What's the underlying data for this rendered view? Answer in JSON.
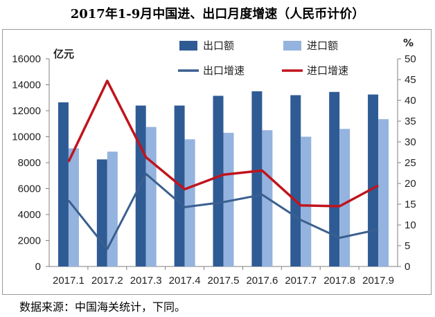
{
  "chart_data": {
    "type": "bar",
    "title": "2017年1-9月中国进、出口月度增速（人民币计价）",
    "categories": [
      "2017.1",
      "2017.2",
      "2017.3",
      "2017.4",
      "2017.5",
      "2017.6",
      "2017.7",
      "2017.8",
      "2017.9"
    ],
    "left_axis": {
      "unit": "亿元",
      "min": 0,
      "max": 16000,
      "ticks": [
        "0",
        "2000",
        "4000",
        "6000",
        "8000",
        "10000",
        "12000",
        "14000",
        "16000"
      ]
    },
    "right_axis": {
      "unit": "%",
      "min": 0,
      "max": 50,
      "ticks": [
        "0",
        "5",
        "10",
        "15",
        "20",
        "25",
        "30",
        "35",
        "40",
        "45",
        "50"
      ]
    },
    "series": [
      {
        "name": "出口额",
        "type": "bar",
        "axis": "left",
        "color": "#2f5b95",
        "values": [
          12650,
          8250,
          12400,
          12400,
          13150,
          13500,
          13200,
          13450,
          13250
        ]
      },
      {
        "name": "进口额",
        "type": "bar",
        "axis": "left",
        "color": "#94b3de",
        "values": [
          9100,
          8850,
          10750,
          9800,
          10300,
          10500,
          10000,
          10600,
          11350
        ]
      },
      {
        "name": "出口增速",
        "type": "line",
        "axis": "right",
        "color": "#3a5f8f",
        "values": [
          15.9,
          4.2,
          22.3,
          14.3,
          15.5,
          17.3,
          11.2,
          6.9,
          8.9
        ]
      },
      {
        "name": "进口增速",
        "type": "line",
        "axis": "right",
        "color": "#c0141c",
        "values": [
          25.2,
          44.7,
          26.3,
          18.6,
          22.1,
          23.1,
          14.7,
          14.5,
          19.5
        ]
      }
    ],
    "legend_position": "top-right",
    "grid": false
  },
  "source_note": "数据来源：中国海关统计，下同。"
}
